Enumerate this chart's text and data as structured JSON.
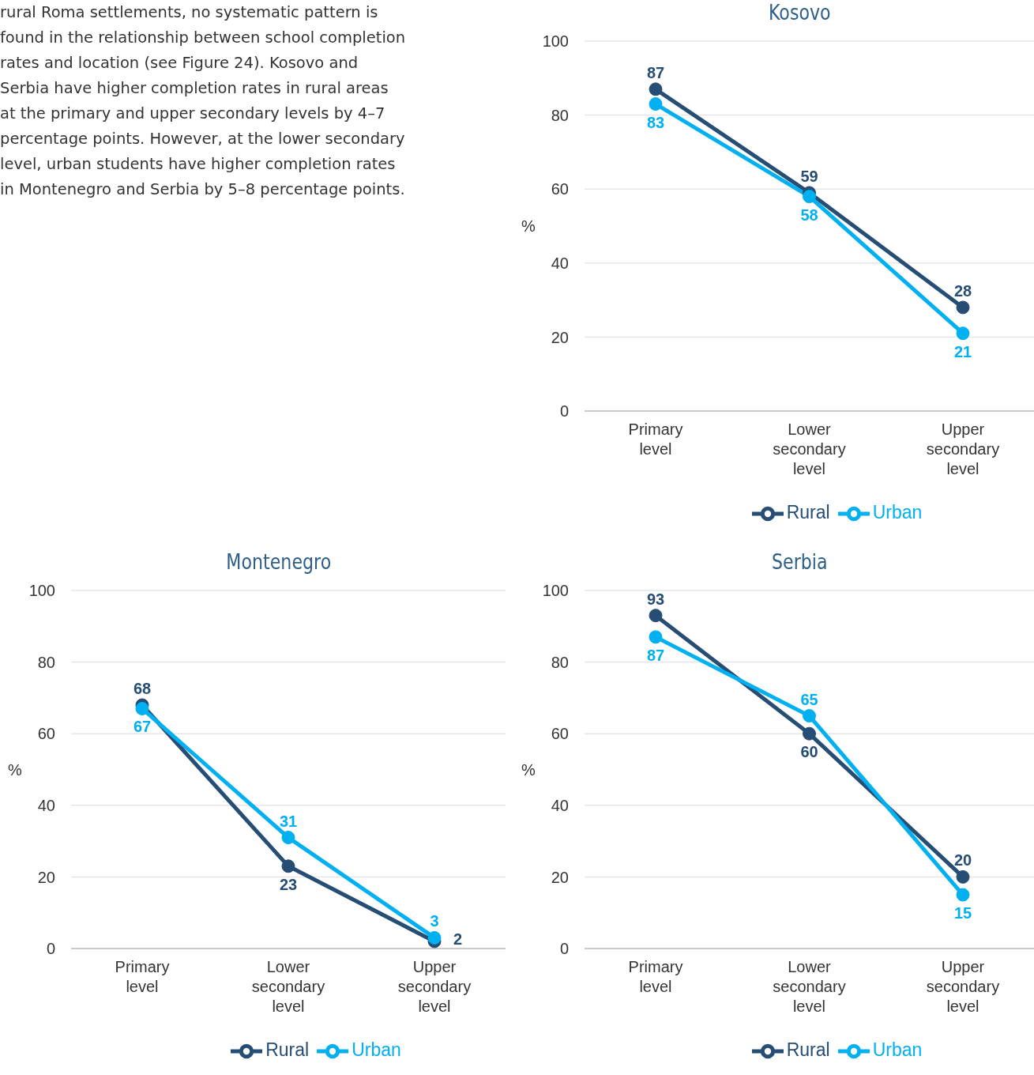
{
  "chart_data": [
    {
      "type": "other",
      "annotations": [
        "rural Roma settlements, no systematic pattern is found in the relationship between school completion rates and location (see Figure 24). Kosovo and Serbia have higher completion rates in rural areas at the primary and upper secondary levels by 4–7 percentage points. However, at the lower secondary level, urban students have higher completion rates in Montenegro and Serbia by 5–8 percentage points."
      ]
    },
    {
      "type": "line",
      "title": "Kosovo",
      "ylabel": "%",
      "categories": [
        "Primary level",
        "Lower secondary level",
        "Upper secondary level"
      ],
      "series": [
        {
          "name": "Rural",
          "color": "#264d73",
          "values": [
            87,
            59,
            28
          ]
        },
        {
          "name": "Urban",
          "color": "#00b0f0",
          "values": [
            83,
            58,
            21
          ]
        }
      ],
      "ylim": [
        0,
        100
      ],
      "yticks": [
        0,
        20,
        40,
        60,
        80,
        100
      ],
      "grid": "y",
      "legend": "bottom",
      "marker": "circle",
      "line_style": "solid",
      "data_labels": true
    },
    {
      "type": "line",
      "title": "Montenegro",
      "ylabel": "%",
      "categories": [
        "Primary level",
        "Lower secondary level",
        "Upper secondary level"
      ],
      "series": [
        {
          "name": "Rural",
          "color": "#264d73",
          "values": [
            68,
            23,
            2
          ]
        },
        {
          "name": "Urban",
          "color": "#00b0f0",
          "values": [
            67,
            31,
            3
          ]
        }
      ],
      "ylim": [
        0,
        100
      ],
      "yticks": [
        0,
        20,
        40,
        60,
        80,
        100
      ],
      "grid": "y",
      "legend": "bottom",
      "marker": "circle",
      "line_style": "solid",
      "data_labels": true
    },
    {
      "type": "line",
      "title": "Serbia",
      "ylabel": "%",
      "categories": [
        "Primary level",
        "Lower secondary level",
        "Upper secondary level"
      ],
      "series": [
        {
          "name": "Rural",
          "color": "#264d73",
          "values": [
            93,
            60,
            20
          ]
        },
        {
          "name": "Urban",
          "color": "#00b0f0",
          "values": [
            87,
            65,
            15
          ]
        }
      ],
      "ylim": [
        0,
        100
      ],
      "yticks": [
        0,
        20,
        40,
        60,
        80,
        100
      ],
      "grid": "y",
      "legend": "bottom",
      "marker": "circle",
      "line_style": "solid",
      "data_labels": true
    }
  ]
}
